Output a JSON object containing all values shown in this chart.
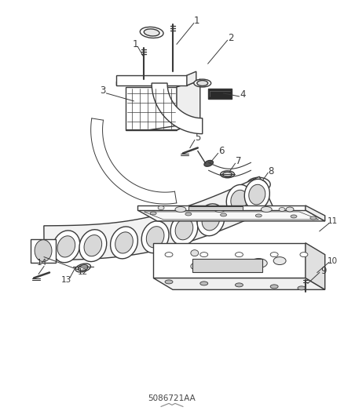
{
  "bg_color": "#ffffff",
  "line_color": "#3a3a3a",
  "label_fontsize": 8.5,
  "part_number": "5086721AA"
}
